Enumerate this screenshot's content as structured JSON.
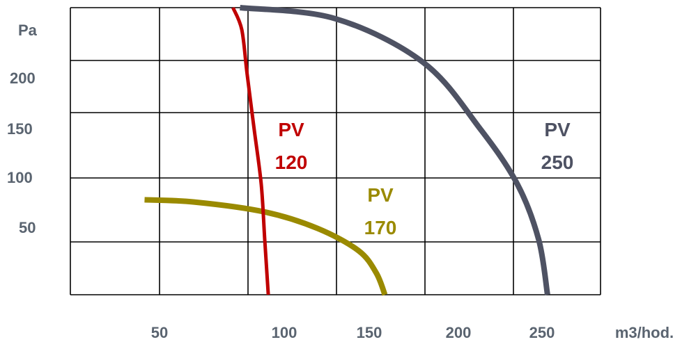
{
  "chart_data": {
    "type": "line",
    "title": "",
    "xlabel": "m3/hod.",
    "ylabel": "Pa",
    "x_ticks": [
      "50",
      "100",
      "150",
      "200",
      "250"
    ],
    "y_ticks": [
      "200",
      "150",
      "100",
      "50"
    ],
    "xlim": [
      0,
      300
    ],
    "ylim": [
      0,
      260
    ],
    "grid": true,
    "series": [
      {
        "name": "PV 120",
        "label_lines": [
          "PV",
          "120"
        ],
        "color": "#c00000",
        "x": [
          92,
          97,
          100,
          104,
          108,
          110,
          112
        ],
        "y": [
          260,
          240,
          200,
          150,
          100,
          50,
          0
        ]
      },
      {
        "name": "PV 170",
        "label_lines": [
          "PV",
          "170"
        ],
        "color": "#9a8a00",
        "x": [
          42,
          70,
          110,
          140,
          163,
          173,
          178
        ],
        "y": [
          86,
          84,
          75,
          60,
          40,
          20,
          0
        ]
      },
      {
        "name": "PV 250",
        "label_lines": [
          "PV",
          "250"
        ],
        "color": "#4e5263",
        "x": [
          96,
          150,
          200,
          232,
          253,
          265,
          270
        ],
        "y": [
          260,
          250,
          210,
          150,
          100,
          50,
          0
        ]
      }
    ]
  }
}
